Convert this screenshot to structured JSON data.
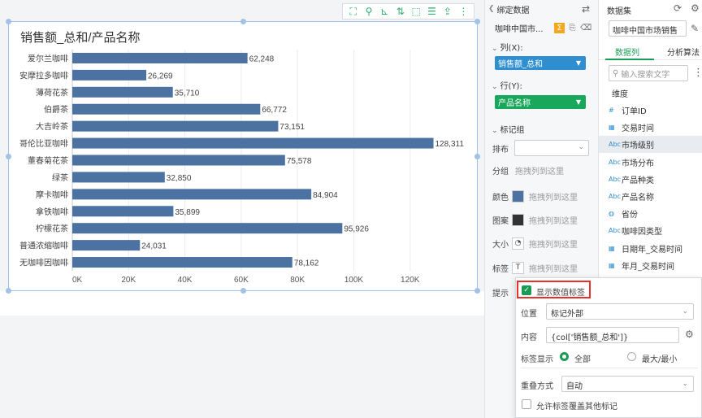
{
  "toolbar": {
    "icons": [
      "expand-icon",
      "filter-icon",
      "axis-icon",
      "sort-icon",
      "select-icon",
      "table-icon",
      "export-icon",
      "more-icon"
    ]
  },
  "chart_data": {
    "type": "bar",
    "orientation": "horizontal",
    "title": "销售额_总和/产品名称",
    "categories": [
      "爱尔兰咖啡",
      "安摩拉多咖啡",
      "薄荷花茶",
      "伯爵茶",
      "大吉岭茶",
      "哥伦比亚咖啡",
      "董春菊花茶",
      "绿茶",
      "摩卡咖啡",
      "拿铁咖啡",
      "柠檬花茶",
      "普通浓缩咖啡",
      "无咖啡因咖啡"
    ],
    "values": [
      62248,
      26269,
      35710,
      66772,
      73151,
      128311,
      75578,
      32850,
      84904,
      35899,
      95926,
      24031,
      78162
    ],
    "data_labels": [
      "62,248",
      "26,269",
      "35,710",
      "66,772",
      "73,151",
      "128,311",
      "75,578",
      "32,850",
      "84,904",
      "35,899",
      "95,926",
      "24,031",
      "78,162"
    ],
    "x_ticks": [
      "0K",
      "20K",
      "40K",
      "60K",
      "80K",
      "100K",
      "120K"
    ],
    "xlim": [
      0,
      140000
    ],
    "bar_color": "#4b72a1",
    "grid": true
  },
  "bind_panel": {
    "title": "绑定数据",
    "dataset": "咖啡中国市...",
    "col_label": "列(X):",
    "col_field": "销售额_总和",
    "row_label": "行(Y):",
    "row_field": "产品名称",
    "mark_group": "标记组",
    "rows": [
      {
        "label": "排布",
        "drop": ""
      },
      {
        "label": "分组",
        "drop": "拖拽列到这里"
      },
      {
        "label": "颜色",
        "drop": "拖拽列到这里"
      },
      {
        "label": "图案",
        "drop": "拖拽列到这里"
      },
      {
        "label": "大小",
        "drop": "拖拽列到这里"
      },
      {
        "label": "标签",
        "drop": "拖拽列到这里"
      },
      {
        "label": "提示",
        "drop": ""
      }
    ],
    "colors": {
      "color_swatch": "#4b72a1",
      "pattern_swatch": "#333333"
    }
  },
  "dataset_panel": {
    "title": "数据集",
    "dataset": "咖啡中国市场销售",
    "tabs": [
      "数据列",
      "分析算法"
    ],
    "search_placeholder": "输入搜索文字",
    "section": "维度",
    "fields": [
      {
        "type": "#",
        "name": "订单ID"
      },
      {
        "type": "▦",
        "name": "交易时间"
      },
      {
        "type": "Abc",
        "name": "市场级别"
      },
      {
        "type": "Abc",
        "name": "市场分布"
      },
      {
        "type": "Abc",
        "name": "产品种类"
      },
      {
        "type": "Abc",
        "name": "产品名称"
      },
      {
        "type": "◍",
        "name": "省份"
      },
      {
        "type": "Abc",
        "name": "咖啡因类型"
      },
      {
        "type": "▦",
        "name": "日期年_交易时间"
      },
      {
        "type": "▦",
        "name": "年月_交易时间"
      }
    ]
  },
  "label_popup": {
    "show_value_label": "显示数值标签",
    "position_label": "位置",
    "position_value": "标记外部",
    "content_label": "内容",
    "content_value": "{col['销售额_总和']}",
    "display_label": "标签显示",
    "display_all": "全部",
    "display_maxmin": "最大/最小",
    "overlap_label": "重叠方式",
    "overlap_value": "自动",
    "allow_cover": "允许标签覆盖其他标记"
  }
}
